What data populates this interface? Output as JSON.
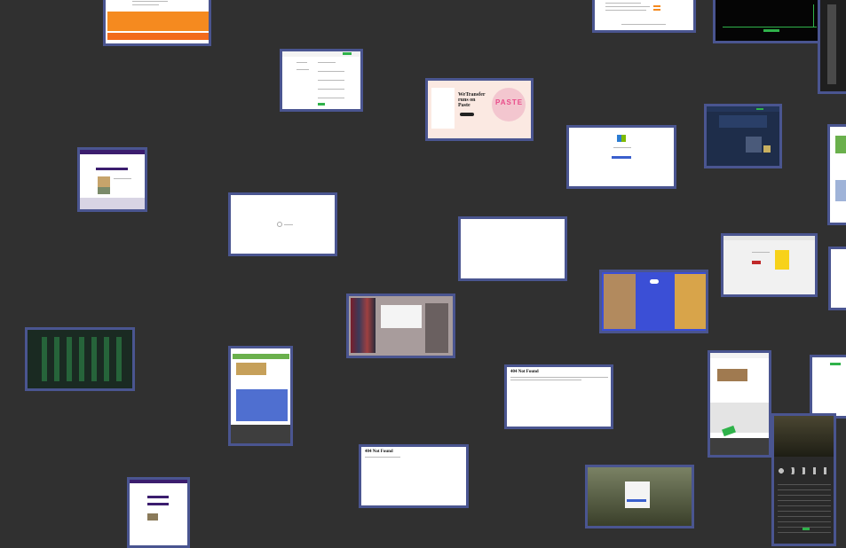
{
  "window": {
    "title": ""
  },
  "colors": {
    "background": "#303030",
    "tile_border": "#4a5590",
    "accent_purple": "#3b1d6e",
    "accent_green": "#2fb24a"
  },
  "tiles": [
    {
      "id": "orange-promo-page",
      "text": ""
    },
    {
      "id": "form-page",
      "text": ""
    },
    {
      "id": "wetransfer-page",
      "headline": "WeTransfer runs on Paste",
      "logo": "PASTE"
    },
    {
      "id": "table-page",
      "text": ""
    },
    {
      "id": "dark-terminal-page",
      "text": ""
    },
    {
      "id": "purple-header-page",
      "text": ""
    },
    {
      "id": "loading-page",
      "text": ""
    },
    {
      "id": "blank-page",
      "text": ""
    },
    {
      "id": "windows-login-page",
      "text": ""
    },
    {
      "id": "dark-blue-page",
      "text": ""
    },
    {
      "id": "yellow-ad-page",
      "text": ""
    },
    {
      "id": "retail-photo-page",
      "text": ""
    },
    {
      "id": "blue-app-page",
      "text": ""
    },
    {
      "id": "green-grid-page",
      "text": ""
    },
    {
      "id": "banner-ad-page",
      "text": ""
    },
    {
      "id": "not-found-page-1",
      "title": "404 Not Found"
    },
    {
      "id": "not-found-page-2",
      "title": "404 Not Found"
    },
    {
      "id": "shop-page",
      "text": ""
    },
    {
      "id": "login-dialog-page",
      "text": ""
    },
    {
      "id": "purple-list-page",
      "text": ""
    },
    {
      "id": "dark-cards-page",
      "text": ""
    }
  ]
}
